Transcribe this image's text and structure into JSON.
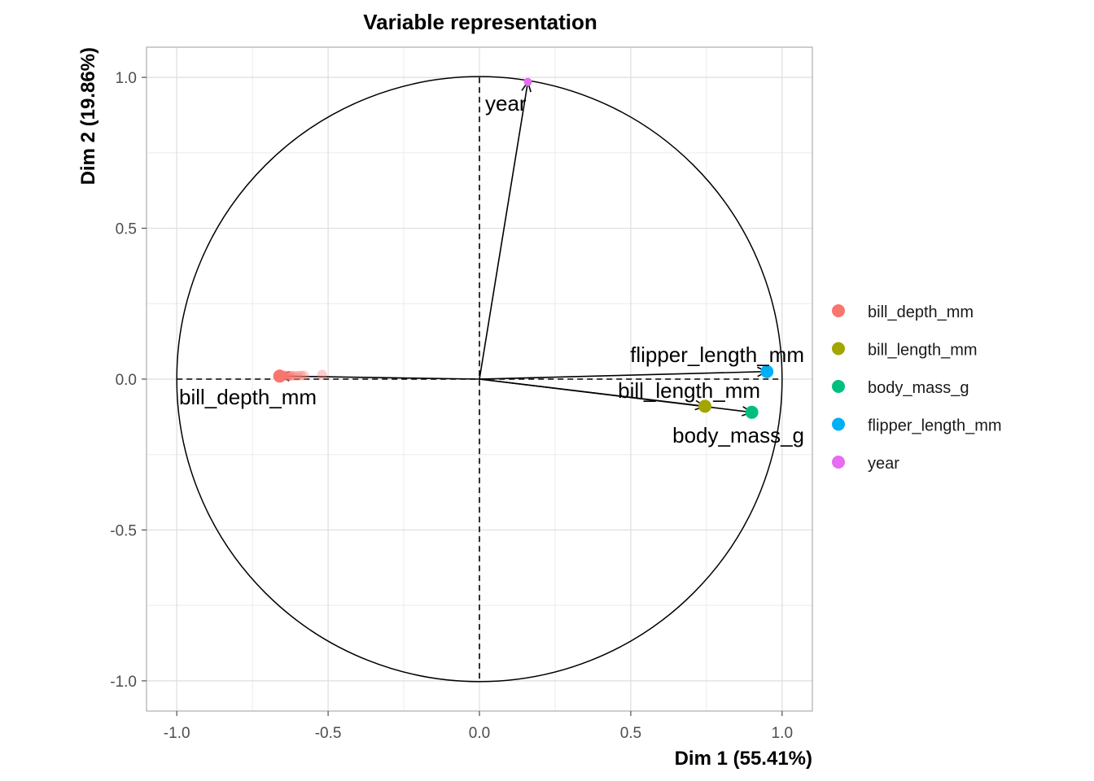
{
  "chart_data": {
    "type": "scatter",
    "subtype": "pca-variable-correlation-circle",
    "title": "Variable representation",
    "xlabel": "Dim 1 (55.41%)",
    "ylabel": "Dim 2 (19.86%)",
    "xlim": [
      -1.1,
      1.1
    ],
    "ylim": [
      -1.1,
      1.1
    ],
    "x_ticks": [
      -1.0,
      -0.5,
      0.0,
      0.5,
      1.0
    ],
    "x_tick_labels": [
      "-1.0",
      "-0.5",
      "0.0",
      "0.5",
      "1.0"
    ],
    "y_ticks": [
      -1.0,
      -0.5,
      0.0,
      0.5,
      1.0
    ],
    "y_tick_labels": [
      "-1.0",
      "-0.5",
      "0.0",
      "0.5",
      "1.0"
    ],
    "grid": true,
    "unit_circle": true,
    "legend_position": "right",
    "series": [
      {
        "name": "bill_depth_mm",
        "color": "#F8766D",
        "x": -0.66,
        "y": 0.01,
        "label": "bill_depth_mm"
      },
      {
        "name": "bill_length_mm",
        "color": "#A3A500",
        "x": 0.745,
        "y": -0.09,
        "label": "bill_length_mm"
      },
      {
        "name": "body_mass_g",
        "color": "#00BF7D",
        "x": 0.9,
        "y": -0.11,
        "label": "body_mass_g"
      },
      {
        "name": "flipper_length_mm",
        "color": "#00B0F6",
        "x": 0.95,
        "y": 0.025,
        "label": "flipper_length_mm"
      },
      {
        "name": "year",
        "color": "#E76BF3",
        "x": 0.16,
        "y": 0.985,
        "label": "year"
      }
    ],
    "bill_depth_trail": {
      "x": [
        -0.66,
        -0.655,
        -0.65,
        -0.645,
        -0.64,
        -0.635,
        -0.63,
        -0.625,
        -0.62,
        -0.61,
        -0.6,
        -0.59,
        -0.58,
        -0.52
      ],
      "y": [
        0.012,
        0.012,
        0.011,
        0.012,
        0.011,
        0.011,
        0.011,
        0.011,
        0.011,
        0.011,
        0.011,
        0.012,
        0.012,
        0.015
      ]
    }
  }
}
